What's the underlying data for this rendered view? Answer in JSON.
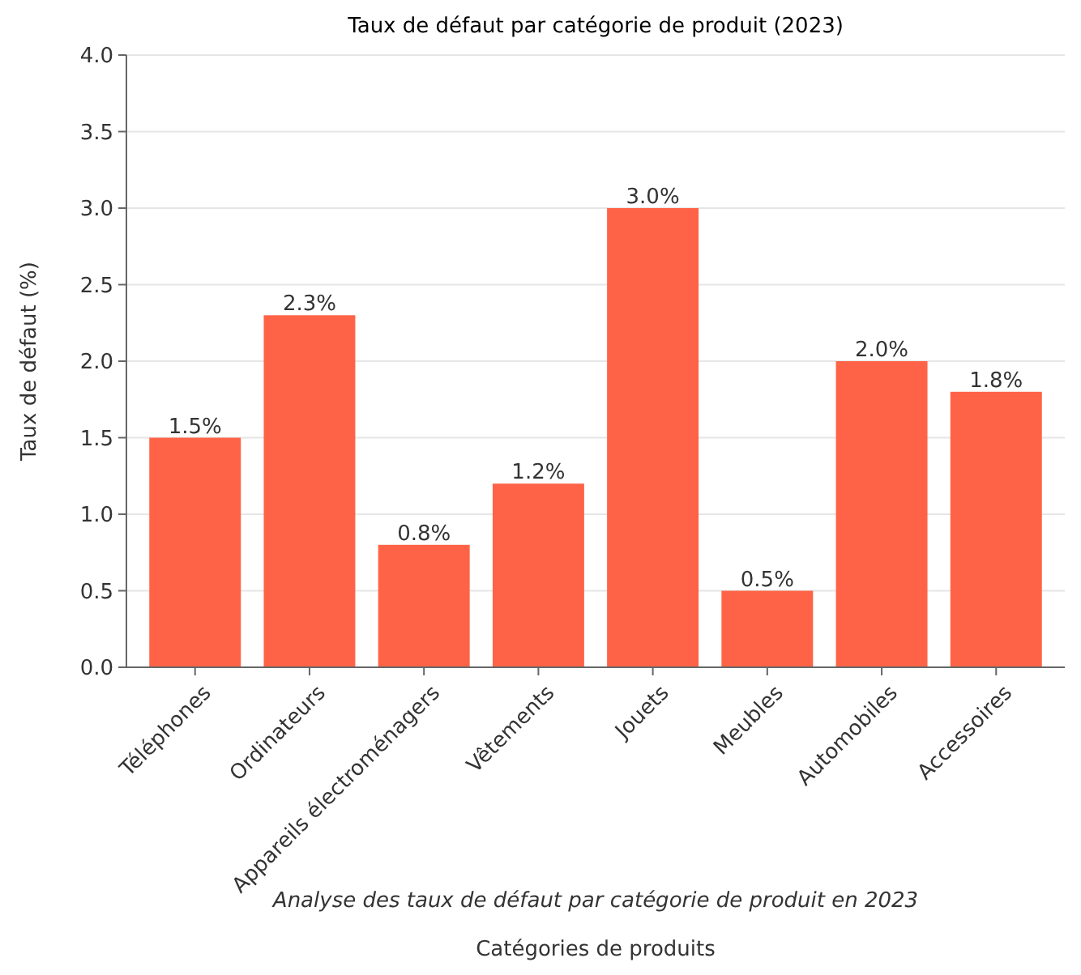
{
  "chart_data": {
    "type": "bar",
    "title": "Taux de défaut par catégorie de produit (2023)",
    "xlabel": "Catégories de produits",
    "ylabel": "Taux de défaut (%)",
    "categories": [
      "Téléphones",
      "Ordinateurs",
      "Appareils électroménagers",
      "Vêtements",
      "Jouets",
      "Meubles",
      "Automobiles",
      "Accessoires"
    ],
    "values": [
      1.5,
      2.3,
      0.8,
      1.2,
      3.0,
      0.5,
      2.0,
      1.8
    ],
    "value_labels": [
      "1.5%",
      "2.3%",
      "0.8%",
      "1.2%",
      "3.0%",
      "0.5%",
      "2.0%",
      "1.8%"
    ],
    "color": "#ff6347",
    "ylim": [
      0,
      4
    ],
    "yticks": [
      {
        "value": 0,
        "label": "0.0"
      },
      {
        "value": 0.5,
        "label": "0.5"
      },
      {
        "value": 1,
        "label": "1.0"
      },
      {
        "value": 1.5,
        "label": "1.5"
      },
      {
        "value": 2,
        "label": "2.0"
      },
      {
        "value": 2.5,
        "label": "2.5"
      },
      {
        "value": 3,
        "label": "3.0"
      },
      {
        "value": 3.5,
        "label": "3.5"
      },
      {
        "value": 4,
        "label": "4.0"
      }
    ],
    "grid": "y",
    "annotations": [
      "Analyse des taux de défaut par catégorie de produit en 2023"
    ]
  }
}
